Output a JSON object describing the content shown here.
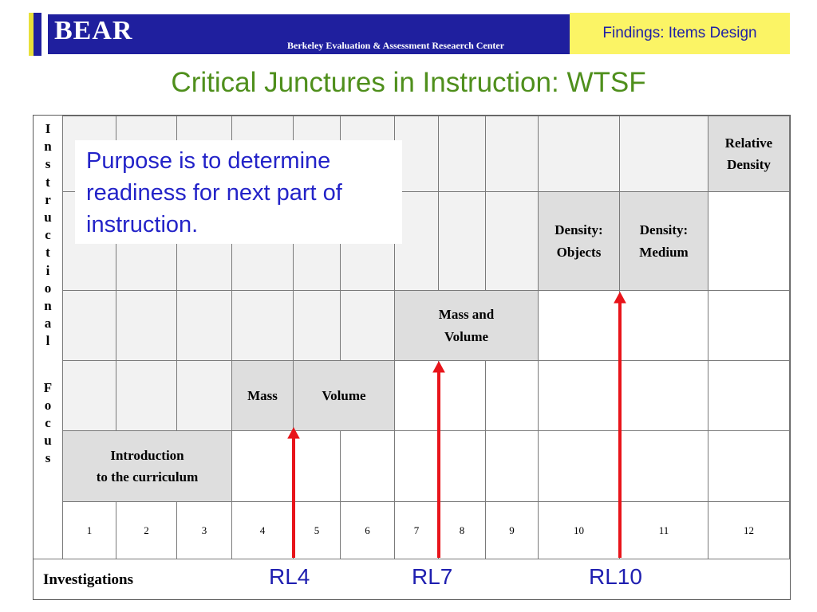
{
  "header": {
    "logo_text": "BEAR",
    "org_name": "Berkeley Evaluation & Assessment Reseaerch Center",
    "section_label": "Findings: Items Design"
  },
  "slide": {
    "title": "Critical Junctures in Instruction: WTSF"
  },
  "side_label": {
    "word1": [
      "I",
      "n",
      "s",
      "t",
      "r",
      "u",
      "c",
      "t",
      "i",
      "o",
      "n",
      "a",
      "l"
    ],
    "word2": [
      "F",
      "o",
      "c",
      "u",
      "s"
    ]
  },
  "columns": [
    "1",
    "2",
    "3",
    "4",
    "5",
    "6",
    "7",
    "8",
    "9",
    "10",
    "11",
    "12"
  ],
  "topics": {
    "intro_line1": "Introduction",
    "intro_line2": "to the curriculum",
    "mass": "Mass",
    "volume": "Volume",
    "mass_volume_line1": "Mass and",
    "mass_volume_line2": "Volume",
    "density_objects_line1": "Density:",
    "density_objects_line2": "Objects",
    "density_medium_line1": "Density:",
    "density_medium_line2": "Medium",
    "relative_density_line1": "Relative",
    "relative_density_line2": "Density"
  },
  "footer": {
    "investigations_label": "Investigations",
    "markers": [
      "RL4",
      "RL7",
      "RL10"
    ]
  },
  "callout": {
    "text": "Purpose is to determine readiness for next part of instruction."
  },
  "colors": {
    "header_blue": "#1f1f9e",
    "header_yellow": "#fbf465",
    "title_green": "#4f8f1c",
    "callout_blue": "#2323c8",
    "arrow_red": "#e8141a",
    "topic_gray": "#dedede"
  }
}
